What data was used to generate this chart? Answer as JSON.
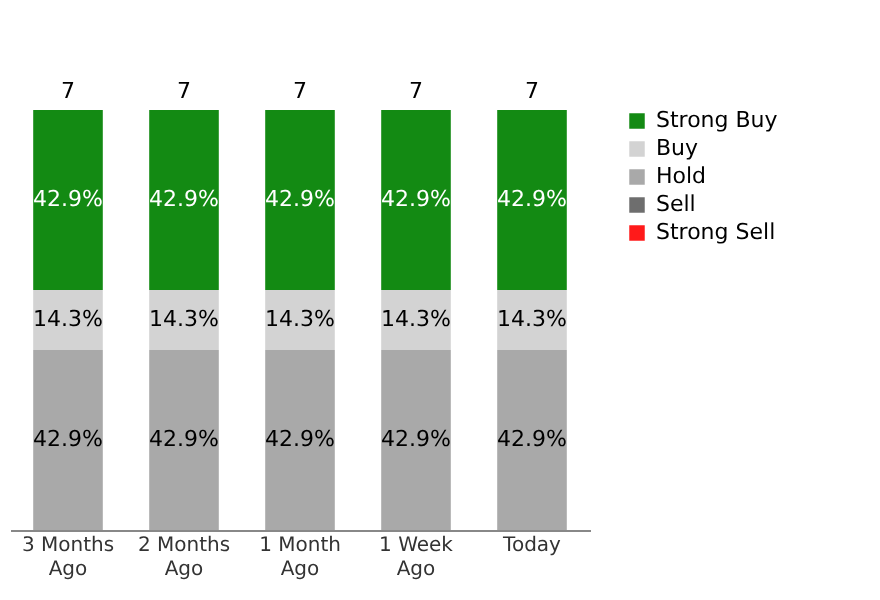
{
  "chart_data": {
    "type": "bar",
    "stacked": true,
    "categories": [
      "3 Months\nAgo",
      "2 Months\nAgo",
      "1 Month\nAgo",
      "1 Week\nAgo",
      "Today"
    ],
    "series": [
      {
        "name": "Strong Sell",
        "color": "#ff1a1a",
        "values": [
          null,
          null,
          null,
          null,
          null
        ]
      },
      {
        "name": "Sell",
        "color": "#6e6e6e",
        "values": [
          null,
          null,
          null,
          null,
          null
        ]
      },
      {
        "name": "Hold",
        "color": "#a9a9a9",
        "values": [
          42.9,
          42.9,
          42.9,
          42.9,
          42.9
        ],
        "value_labels": [
          "42.9%",
          "42.9%",
          "42.9%",
          "42.9%",
          "42.9%"
        ]
      },
      {
        "name": "Buy",
        "color": "#d3d3d3",
        "values": [
          14.3,
          14.3,
          14.3,
          14.3,
          14.3
        ],
        "value_labels": [
          "14.3%",
          "14.3%",
          "14.3%",
          "14.3%",
          "14.3%"
        ]
      },
      {
        "name": "Strong Buy",
        "color": "#138a13",
        "values": [
          42.9,
          42.9,
          42.9,
          42.9,
          42.9
        ],
        "value_labels": [
          "42.9%",
          "42.9%",
          "42.9%",
          "42.9%",
          "42.9%"
        ]
      }
    ],
    "annotations": [
      {
        "text": "7",
        "x": "3 Months\nAgo",
        "y": 100.1
      },
      {
        "text": "7",
        "x": "2 Months\nAgo",
        "y": 100.1
      },
      {
        "text": "7",
        "x": "1 Month\nAgo",
        "y": 100.1
      },
      {
        "text": "7",
        "x": "1 Week\nAgo",
        "y": 100.1
      },
      {
        "text": "7",
        "x": "Today",
        "y": 100.1
      }
    ],
    "legend": "right"
  }
}
